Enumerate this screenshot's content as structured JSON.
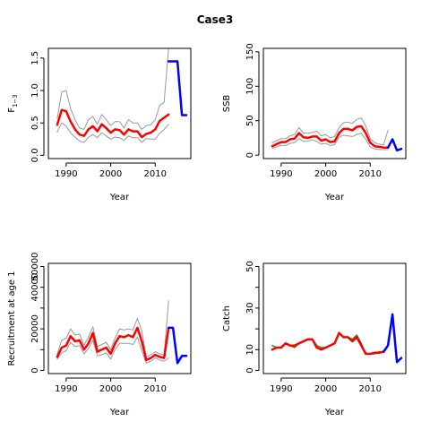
{
  "title": "Case3",
  "colors": {
    "ci": "#999999",
    "hist": "#ff0000",
    "proj": "#0000ff",
    "obs": "#228b22"
  },
  "chart_data": [
    {
      "type": "line",
      "panel": "top-left",
      "xlabel": "Year",
      "ylabel": "F1−3",
      "ylabel_main": "F",
      "ylabel_sub": "1−3",
      "xlim": [
        1986,
        2018
      ],
      "ylim": [
        -0.05,
        1.65
      ],
      "xticks": [
        1990,
        2000,
        2010
      ],
      "yticks": [
        0.0,
        0.5,
        1.0,
        1.5
      ],
      "ytick_labels": [
        "0.0",
        "0.5",
        "1.0",
        "1.5"
      ],
      "series": [
        {
          "role": "lower",
          "x": [
            1988,
            1989,
            1990,
            1991,
            1992,
            1993,
            1994,
            1995,
            1996,
            1997,
            1998,
            1999,
            2000,
            2001,
            2002,
            2003,
            2004,
            2005,
            2006,
            2007,
            2008,
            2009,
            2010,
            2011,
            2012,
            2013
          ],
          "y": [
            0.36,
            0.5,
            0.45,
            0.35,
            0.28,
            0.22,
            0.2,
            0.28,
            0.32,
            0.27,
            0.35,
            0.3,
            0.25,
            0.28,
            0.27,
            0.23,
            0.3,
            0.27,
            0.27,
            0.2,
            0.26,
            0.25,
            0.25,
            0.34,
            0.4,
            0.48
          ]
        },
        {
          "role": "upper",
          "x": [
            1988,
            1989,
            1990,
            1991,
            1992,
            1993,
            1994,
            1995,
            1996,
            1997,
            1998,
            1999,
            2000,
            2001,
            2002,
            2003,
            2004,
            2005,
            2006,
            2007,
            2008,
            2009,
            2010,
            2011,
            2012,
            2013
          ],
          "y": [
            0.57,
            0.98,
            1.0,
            0.72,
            0.55,
            0.42,
            0.4,
            0.55,
            0.6,
            0.48,
            0.63,
            0.55,
            0.46,
            0.52,
            0.52,
            0.42,
            0.55,
            0.5,
            0.5,
            0.4,
            0.46,
            0.47,
            0.55,
            0.77,
            0.82,
            1.65
          ]
        },
        {
          "role": "historical",
          "x": [
            1988,
            1989,
            1990,
            1991,
            1992,
            1993,
            1994,
            1995,
            1996,
            1997,
            1998,
            1999,
            2000,
            2001,
            2002,
            2003,
            2004,
            2005,
            2006,
            2007,
            2008,
            2009,
            2010,
            2011,
            2012,
            2013
          ],
          "y": [
            0.47,
            0.7,
            0.68,
            0.52,
            0.4,
            0.32,
            0.3,
            0.4,
            0.45,
            0.37,
            0.48,
            0.42,
            0.35,
            0.4,
            0.39,
            0.32,
            0.4,
            0.37,
            0.37,
            0.28,
            0.33,
            0.35,
            0.4,
            0.53,
            0.58,
            0.63
          ]
        },
        {
          "role": "projection",
          "x": [
            2013,
            2014,
            2015,
            2016,
            2017
          ],
          "y": [
            1.45,
            1.45,
            1.45,
            0.62,
            0.62
          ]
        }
      ]
    },
    {
      "type": "line",
      "panel": "top-right",
      "xlabel": "Year",
      "ylabel": "SSB",
      "xlim": [
        1986,
        2018
      ],
      "ylim": [
        -5,
        155
      ],
      "xticks": [
        1990,
        2000,
        2010
      ],
      "yticks": [
        0,
        50,
        100,
        150
      ],
      "ytick_labels": [
        "0",
        "50",
        "100",
        "150"
      ],
      "series": [
        {
          "role": "lower",
          "x": [
            1988,
            1989,
            1990,
            1991,
            1992,
            1993,
            1994,
            1995,
            1996,
            1997,
            1998,
            1999,
            2000,
            2001,
            2002,
            2003,
            2004,
            2005,
            2006,
            2007,
            2008,
            2009,
            2010,
            2011,
            2012,
            2013,
            2014
          ],
          "y": [
            10,
            12,
            14,
            14,
            17,
            18,
            24,
            20,
            20,
            22,
            20,
            16,
            17,
            14,
            15,
            26,
            29,
            28,
            27,
            30,
            32,
            23,
            12,
            9,
            8,
            8,
            8
          ]
        },
        {
          "role": "upper",
          "x": [
            1988,
            1989,
            1990,
            1991,
            1992,
            1993,
            1994,
            1995,
            1996,
            1997,
            1998,
            1999,
            2000,
            2001,
            2002,
            2003,
            2004,
            2005,
            2006,
            2007,
            2008,
            2009,
            2010,
            2011,
            2012,
            2013,
            2014
          ],
          "y": [
            18,
            21,
            24,
            24,
            28,
            30,
            40,
            32,
            32,
            33,
            35,
            28,
            30,
            25,
            27,
            40,
            47,
            48,
            46,
            52,
            54,
            42,
            24,
            18,
            16,
            15,
            36
          ]
        },
        {
          "role": "historical",
          "x": [
            1988,
            1989,
            1990,
            1991,
            1992,
            1993,
            1994,
            1995,
            1996,
            1997,
            1998,
            1999,
            2000,
            2001,
            2002,
            2003,
            2004,
            2005,
            2006,
            2007,
            2008,
            2009,
            2010,
            2011,
            2012,
            2013,
            2014
          ],
          "y": [
            13,
            16,
            19,
            19,
            23,
            24,
            32,
            26,
            25,
            27,
            27,
            21,
            23,
            19,
            20,
            32,
            38,
            38,
            36,
            41,
            42,
            32,
            18,
            13,
            12,
            11,
            11
          ]
        },
        {
          "role": "projection",
          "x": [
            2014,
            2015,
            2016,
            2017
          ],
          "y": [
            11,
            23,
            7,
            9
          ]
        }
      ]
    },
    {
      "type": "line",
      "panel": "bottom-left",
      "xlabel": "Year",
      "ylabel": "Recruitment at age 1",
      "xlim": [
        1986,
        2018
      ],
      "ylim": [
        -1500,
        51500
      ],
      "xticks": [
        1990,
        2000,
        2010
      ],
      "yticks": [
        0,
        10000,
        20000,
        30000,
        40000,
        50000
      ],
      "ytick_labels": [
        "0",
        "",
        "20000",
        "",
        "40000",
        "50000"
      ],
      "series": [
        {
          "role": "lower",
          "x": [
            1988,
            1989,
            1990,
            1991,
            1992,
            1993,
            1994,
            1995,
            1996,
            1997,
            1998,
            1999,
            2000,
            2001,
            2002,
            2003,
            2004,
            2005,
            2006,
            2007,
            2008,
            2009,
            2010,
            2011,
            2012,
            2013
          ],
          "y": [
            5500,
            8500,
            9500,
            13500,
            11500,
            12000,
            8000,
            10500,
            14500,
            7000,
            7500,
            8500,
            5500,
            10000,
            13000,
            13000,
            13000,
            12500,
            16000,
            9500,
            3500,
            4500,
            6000,
            5000,
            4500,
            6000
          ]
        },
        {
          "role": "upper",
          "x": [
            1988,
            1989,
            1990,
            1991,
            1992,
            1993,
            1994,
            1995,
            1996,
            1997,
            1998,
            1999,
            2000,
            2001,
            2002,
            2003,
            2004,
            2005,
            2006,
            2007,
            2008,
            2009,
            2010,
            2011,
            2012,
            2013
          ],
          "y": [
            8000,
            14500,
            15500,
            20000,
            17000,
            17500,
            12000,
            16000,
            21000,
            11500,
            12500,
            13500,
            10000,
            15500,
            20000,
            19500,
            20000,
            19500,
            25000,
            19000,
            6500,
            7500,
            9000,
            8000,
            7500,
            33500
          ]
        },
        {
          "role": "historical",
          "x": [
            1988,
            1989,
            1990,
            1991,
            1992,
            1993,
            1994,
            1995,
            1996,
            1997,
            1998,
            1999,
            2000,
            2001,
            2002,
            2003,
            2004,
            2005,
            2006,
            2007,
            2008,
            2009,
            2010,
            2011,
            2012,
            2013
          ],
          "y": [
            6500,
            11000,
            12000,
            16500,
            14000,
            14500,
            10000,
            13000,
            18000,
            9000,
            10000,
            11000,
            8000,
            13000,
            16500,
            16000,
            17000,
            16000,
            20500,
            14000,
            5000,
            6000,
            7500,
            6500,
            6000,
            20500
          ]
        },
        {
          "role": "projection",
          "x": [
            2013,
            2014,
            2015,
            2016,
            2017
          ],
          "y": [
            20500,
            20500,
            3500,
            7000,
            7000
          ]
        }
      ]
    },
    {
      "type": "line",
      "panel": "bottom-right",
      "xlabel": "Year",
      "ylabel": "Catch",
      "xlim": [
        1986,
        2018
      ],
      "ylim": [
        -1.5,
        51.5
      ],
      "xticks": [
        1990,
        2000,
        2010
      ],
      "yticks": [
        0,
        10,
        20,
        30,
        40,
        50
      ],
      "ytick_labels": [
        "0",
        "10",
        "",
        "30",
        "",
        "50"
      ],
      "series": [
        {
          "role": "observed",
          "x": [
            1988,
            1989,
            1990,
            1991,
            1992,
            1993,
            1994,
            1995,
            1996,
            1997,
            1998,
            1999,
            2000,
            2001,
            2002,
            2003,
            2004,
            2005,
            2006,
            2007,
            2008,
            2009,
            2010,
            2011,
            2012,
            2013
          ],
          "y": [
            12,
            11,
            11,
            13,
            12,
            11,
            13,
            14,
            15,
            15,
            12,
            11,
            11,
            12,
            13,
            18,
            16,
            16,
            15,
            17,
            13,
            8,
            8,
            8,
            9,
            9
          ]
        },
        {
          "role": "historical",
          "x": [
            1988,
            1989,
            1990,
            1991,
            1992,
            1993,
            1994,
            1995,
            1996,
            1997,
            1998,
            1999,
            2000,
            2001,
            2002,
            2003,
            2004,
            2005,
            2006,
            2007,
            2008,
            2009,
            2010,
            2011,
            2012,
            2013
          ],
          "y": [
            10,
            11,
            11,
            13,
            12,
            12,
            13,
            14,
            15,
            15,
            11,
            10,
            11,
            12,
            13,
            18,
            16,
            16,
            14,
            16,
            12,
            8,
            8,
            8.5,
            8.5,
            9
          ]
        },
        {
          "role": "projection",
          "x": [
            2013,
            2014,
            2015,
            2016,
            2017
          ],
          "y": [
            9,
            12,
            27,
            4,
            6
          ]
        }
      ]
    }
  ]
}
